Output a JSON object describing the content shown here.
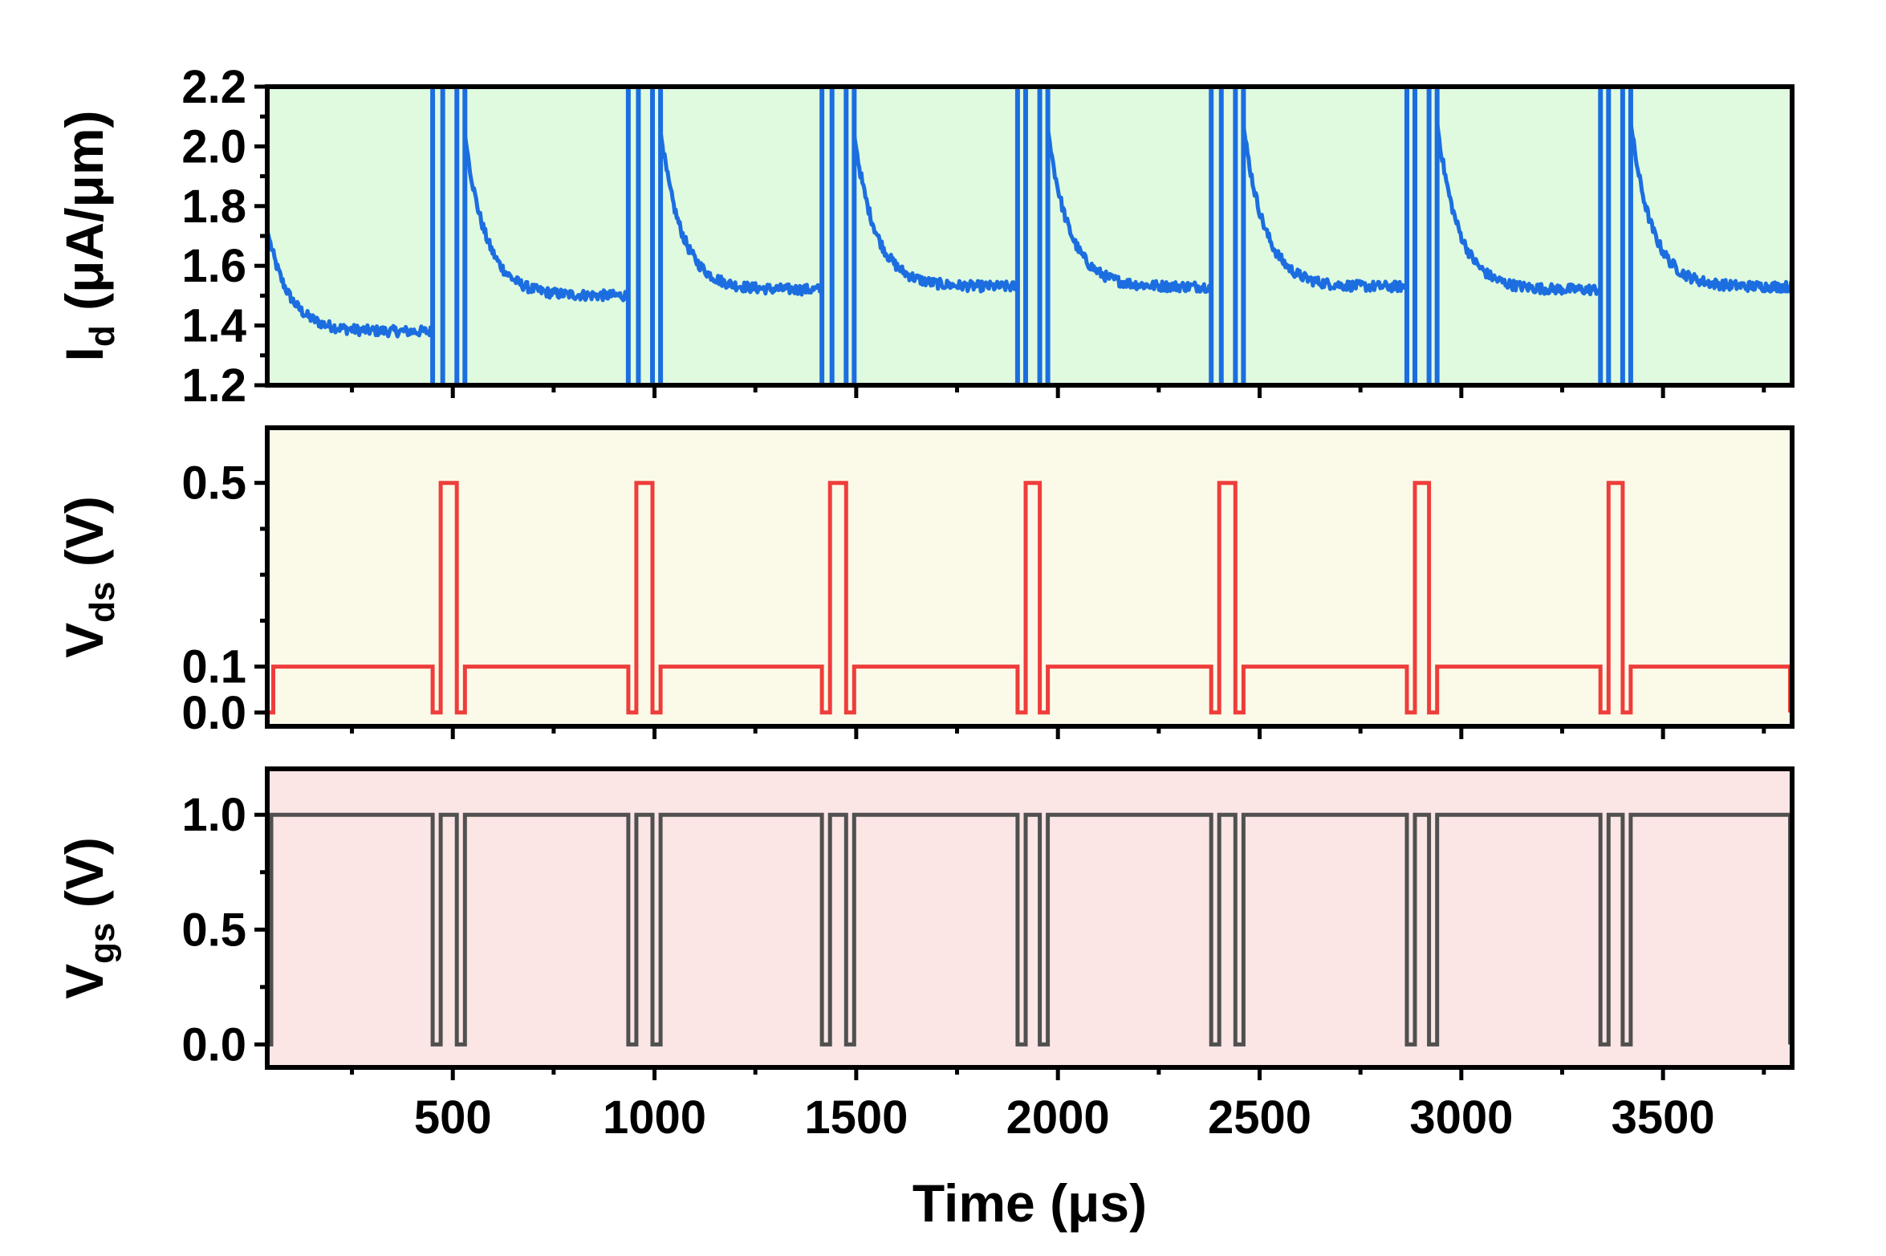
{
  "chart_data": [
    {
      "type": "line",
      "panel": "top",
      "ylabel_main": "I",
      "ylabel_sub": "d",
      "ylabel_rest": " (μA/μm)",
      "ylim": [
        1.2,
        2.2
      ],
      "yticks": [
        1.2,
        1.4,
        1.6,
        1.8,
        2.0,
        2.2
      ],
      "ytick_labels": [
        "1.2",
        "1.4",
        "1.6",
        "1.8",
        "2.0",
        "2.2"
      ],
      "xlim": [
        40,
        3820
      ],
      "background": "#dffadf",
      "line_color": "#1c6ee0",
      "series": [
        {
          "segments": [
            {
              "x_start": 40,
              "x_end": 450,
              "y_start": 1.72,
              "y_end": 1.38
            },
            {
              "x_start": 530,
              "x_end": 935,
              "y_start": 2.04,
              "y_end": 1.5
            },
            {
              "x_start": 1015,
              "x_end": 1415,
              "y_start": 2.05,
              "y_end": 1.52
            },
            {
              "x_start": 1495,
              "x_end": 1900,
              "y_start": 2.04,
              "y_end": 1.53
            },
            {
              "x_start": 1975,
              "x_end": 2380,
              "y_start": 2.06,
              "y_end": 1.53
            },
            {
              "x_start": 2460,
              "x_end": 2865,
              "y_start": 2.07,
              "y_end": 1.53
            },
            {
              "x_start": 2940,
              "x_end": 3345,
              "y_start": 2.08,
              "y_end": 1.52
            },
            {
              "x_start": 3420,
              "x_end": 3820,
              "y_start": 2.08,
              "y_end": 1.53
            }
          ],
          "spikes": [
            450,
            475,
            510,
            530,
            935,
            960,
            995,
            1015,
            1415,
            1440,
            1475,
            1495,
            1900,
            1920,
            1955,
            1975,
            2380,
            2405,
            2440,
            2460,
            2865,
            2885,
            2920,
            2940,
            3345,
            3365,
            3400,
            3420
          ]
        }
      ]
    },
    {
      "type": "line",
      "panel": "middle",
      "ylabel_main": "V",
      "ylabel_sub": "ds",
      "ylabel_rest": " (V)",
      "ylim": [
        -0.03,
        0.62
      ],
      "yticks": [
        0.0,
        0.1,
        0.5
      ],
      "ytick_labels": [
        "0.0",
        "0.1",
        "0.5"
      ],
      "xlim": [
        40,
        3820
      ],
      "background": "#fbfae8",
      "line_color": "#ee3d3b",
      "series": [
        {
          "x": [
            40,
            55,
            55,
            450,
            450,
            470,
            470,
            510,
            510,
            530,
            530,
            935,
            935,
            955,
            955,
            995,
            995,
            1015,
            1015,
            1415,
            1415,
            1435,
            1435,
            1475,
            1475,
            1495,
            1495,
            1900,
            1900,
            1920,
            1920,
            1955,
            1955,
            1975,
            1975,
            2380,
            2380,
            2400,
            2400,
            2440,
            2440,
            2460,
            2460,
            2865,
            2865,
            2885,
            2885,
            2920,
            2920,
            2940,
            2940,
            3345,
            3345,
            3365,
            3365,
            3400,
            3400,
            3420,
            3420,
            3815,
            3815
          ],
          "y": [
            0.0,
            0.0,
            0.1,
            0.1,
            0.0,
            0.0,
            0.5,
            0.5,
            0.0,
            0.0,
            0.1,
            0.1,
            0.0,
            0.0,
            0.5,
            0.5,
            0.0,
            0.0,
            0.1,
            0.1,
            0.0,
            0.0,
            0.5,
            0.5,
            0.0,
            0.0,
            0.1,
            0.1,
            0.0,
            0.0,
            0.5,
            0.5,
            0.0,
            0.0,
            0.1,
            0.1,
            0.0,
            0.0,
            0.5,
            0.5,
            0.0,
            0.0,
            0.1,
            0.1,
            0.0,
            0.0,
            0.5,
            0.5,
            0.0,
            0.0,
            0.1,
            0.1,
            0.0,
            0.0,
            0.5,
            0.5,
            0.0,
            0.0,
            0.1,
            0.1,
            0.0
          ]
        }
      ]
    },
    {
      "type": "line",
      "panel": "bottom",
      "ylabel_main": "V",
      "ylabel_sub": "gs",
      "ylabel_rest": " (V)",
      "ylim": [
        -0.1,
        1.2
      ],
      "yticks": [
        0.0,
        0.5,
        1.0
      ],
      "ytick_labels": [
        "0.0",
        "0.5",
        "1.0"
      ],
      "xlim": [
        40,
        3820
      ],
      "xticks": [
        500,
        1000,
        1500,
        2000,
        2500,
        3000,
        3500
      ],
      "xtick_labels": [
        "500",
        "1000",
        "1500",
        "2000",
        "2500",
        "3000",
        "3500"
      ],
      "xlabel": "Time (μs)",
      "background": "#fbe5e5",
      "line_color": "#505050",
      "series": [
        {
          "x": [
            40,
            50,
            50,
            450,
            450,
            470,
            470,
            490,
            490,
            510,
            510,
            530,
            530,
            935,
            935,
            955,
            955,
            975,
            975,
            995,
            995,
            1015,
            1015,
            1415,
            1415,
            1435,
            1435,
            1455,
            1455,
            1475,
            1475,
            1495,
            1495,
            1900,
            1900,
            1920,
            1920,
            1935,
            1935,
            1955,
            1955,
            1975,
            1975,
            2380,
            2380,
            2400,
            2400,
            2420,
            2420,
            2440,
            2440,
            2460,
            2460,
            2865,
            2865,
            2885,
            2885,
            2900,
            2900,
            2920,
            2920,
            2940,
            2940,
            3345,
            3345,
            3365,
            3365,
            3385,
            3385,
            3400,
            3400,
            3420,
            3420,
            3815,
            3815
          ],
          "y": [
            0.0,
            0.0,
            1.0,
            1.0,
            0.0,
            0.0,
            1.0,
            1.0,
            1.0,
            1.0,
            0.0,
            0.0,
            1.0,
            1.0,
            0.0,
            0.0,
            1.0,
            1.0,
            1.0,
            1.0,
            0.0,
            0.0,
            1.0,
            1.0,
            0.0,
            0.0,
            1.0,
            1.0,
            1.0,
            1.0,
            0.0,
            0.0,
            1.0,
            1.0,
            0.0,
            0.0,
            1.0,
            1.0,
            1.0,
            1.0,
            0.0,
            0.0,
            1.0,
            1.0,
            0.0,
            0.0,
            1.0,
            1.0,
            1.0,
            1.0,
            0.0,
            0.0,
            1.0,
            1.0,
            0.0,
            0.0,
            1.0,
            1.0,
            1.0,
            1.0,
            0.0,
            0.0,
            1.0,
            1.0,
            0.0,
            0.0,
            1.0,
            1.0,
            1.0,
            1.0,
            0.0,
            0.0,
            1.0,
            1.0,
            0.0
          ]
        }
      ]
    }
  ]
}
